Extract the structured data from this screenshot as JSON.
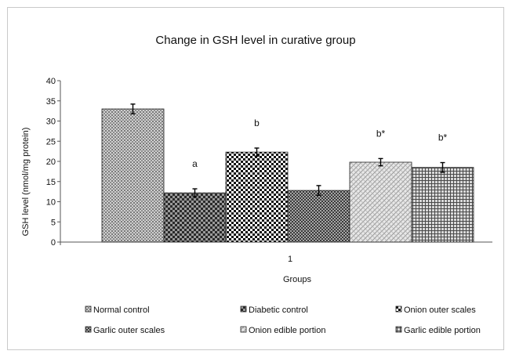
{
  "chart_data": {
    "type": "bar",
    "title": "Change in GSH level in curative group",
    "xlabel": "Groups",
    "ylabel": "GSH level (nmol/mg protein)",
    "categories": [
      "1"
    ],
    "ylim": [
      0,
      40
    ],
    "yticks": [
      0,
      5,
      10,
      15,
      20,
      25,
      30,
      35,
      40
    ],
    "grid": false,
    "legend_position": "bottom",
    "series": [
      {
        "name": "Normal control",
        "values": [
          33.0
        ],
        "error": [
          1.2
        ],
        "annotation": "",
        "pattern": "dots"
      },
      {
        "name": "Diabetic control",
        "values": [
          12.2
        ],
        "error": [
          1.0
        ],
        "annotation": "a",
        "pattern": "dark-check"
      },
      {
        "name": "Onion outer scales",
        "values": [
          22.3
        ],
        "error": [
          1.0
        ],
        "annotation": "b",
        "pattern": "check"
      },
      {
        "name": "Garlic outer scales",
        "values": [
          12.8
        ],
        "error": [
          1.2
        ],
        "annotation": "",
        "pattern": "dark-check-small"
      },
      {
        "name": "Onion edible portion",
        "values": [
          19.8
        ],
        "error": [
          0.9
        ],
        "annotation": "b*",
        "pattern": "light-weave"
      },
      {
        "name": "Garlic edible portion",
        "values": [
          18.5
        ],
        "error": [
          1.2
        ],
        "annotation": "b*",
        "pattern": "grid"
      }
    ]
  }
}
